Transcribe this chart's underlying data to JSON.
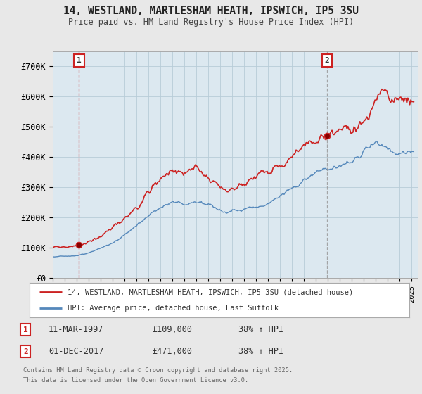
{
  "title_line1": "14, WESTLAND, MARTLESHAM HEATH, IPSWICH, IP5 3SU",
  "title_line2": "Price paid vs. HM Land Registry's House Price Index (HPI)",
  "background_color": "#e8e8e8",
  "plot_bg_color": "#dce8f0",
  "red_color": "#cc2222",
  "blue_color": "#5588bb",
  "ylim": [
    0,
    750000
  ],
  "yticks": [
    0,
    100000,
    200000,
    300000,
    400000,
    500000,
    600000,
    700000
  ],
  "ytick_labels": [
    "£0",
    "£100K",
    "£200K",
    "£300K",
    "£400K",
    "£500K",
    "£600K",
    "£700K"
  ],
  "marker1_date": 1997.19,
  "marker1_price": 109000,
  "marker2_date": 2017.92,
  "marker2_price": 471000,
  "legend_line1": "14, WESTLAND, MARTLESHAM HEATH, IPSWICH, IP5 3SU (detached house)",
  "legend_line2": "HPI: Average price, detached house, East Suffolk",
  "footnote_line1": "Contains HM Land Registry data © Crown copyright and database right 2025.",
  "footnote_line2": "This data is licensed under the Open Government Licence v3.0.",
  "annot1_date": "11-MAR-1997",
  "annot1_price": "£109,000",
  "annot1_hpi": "38% ↑ HPI",
  "annot2_date": "01-DEC-2017",
  "annot2_price": "£471,000",
  "annot2_hpi": "38% ↑ HPI"
}
